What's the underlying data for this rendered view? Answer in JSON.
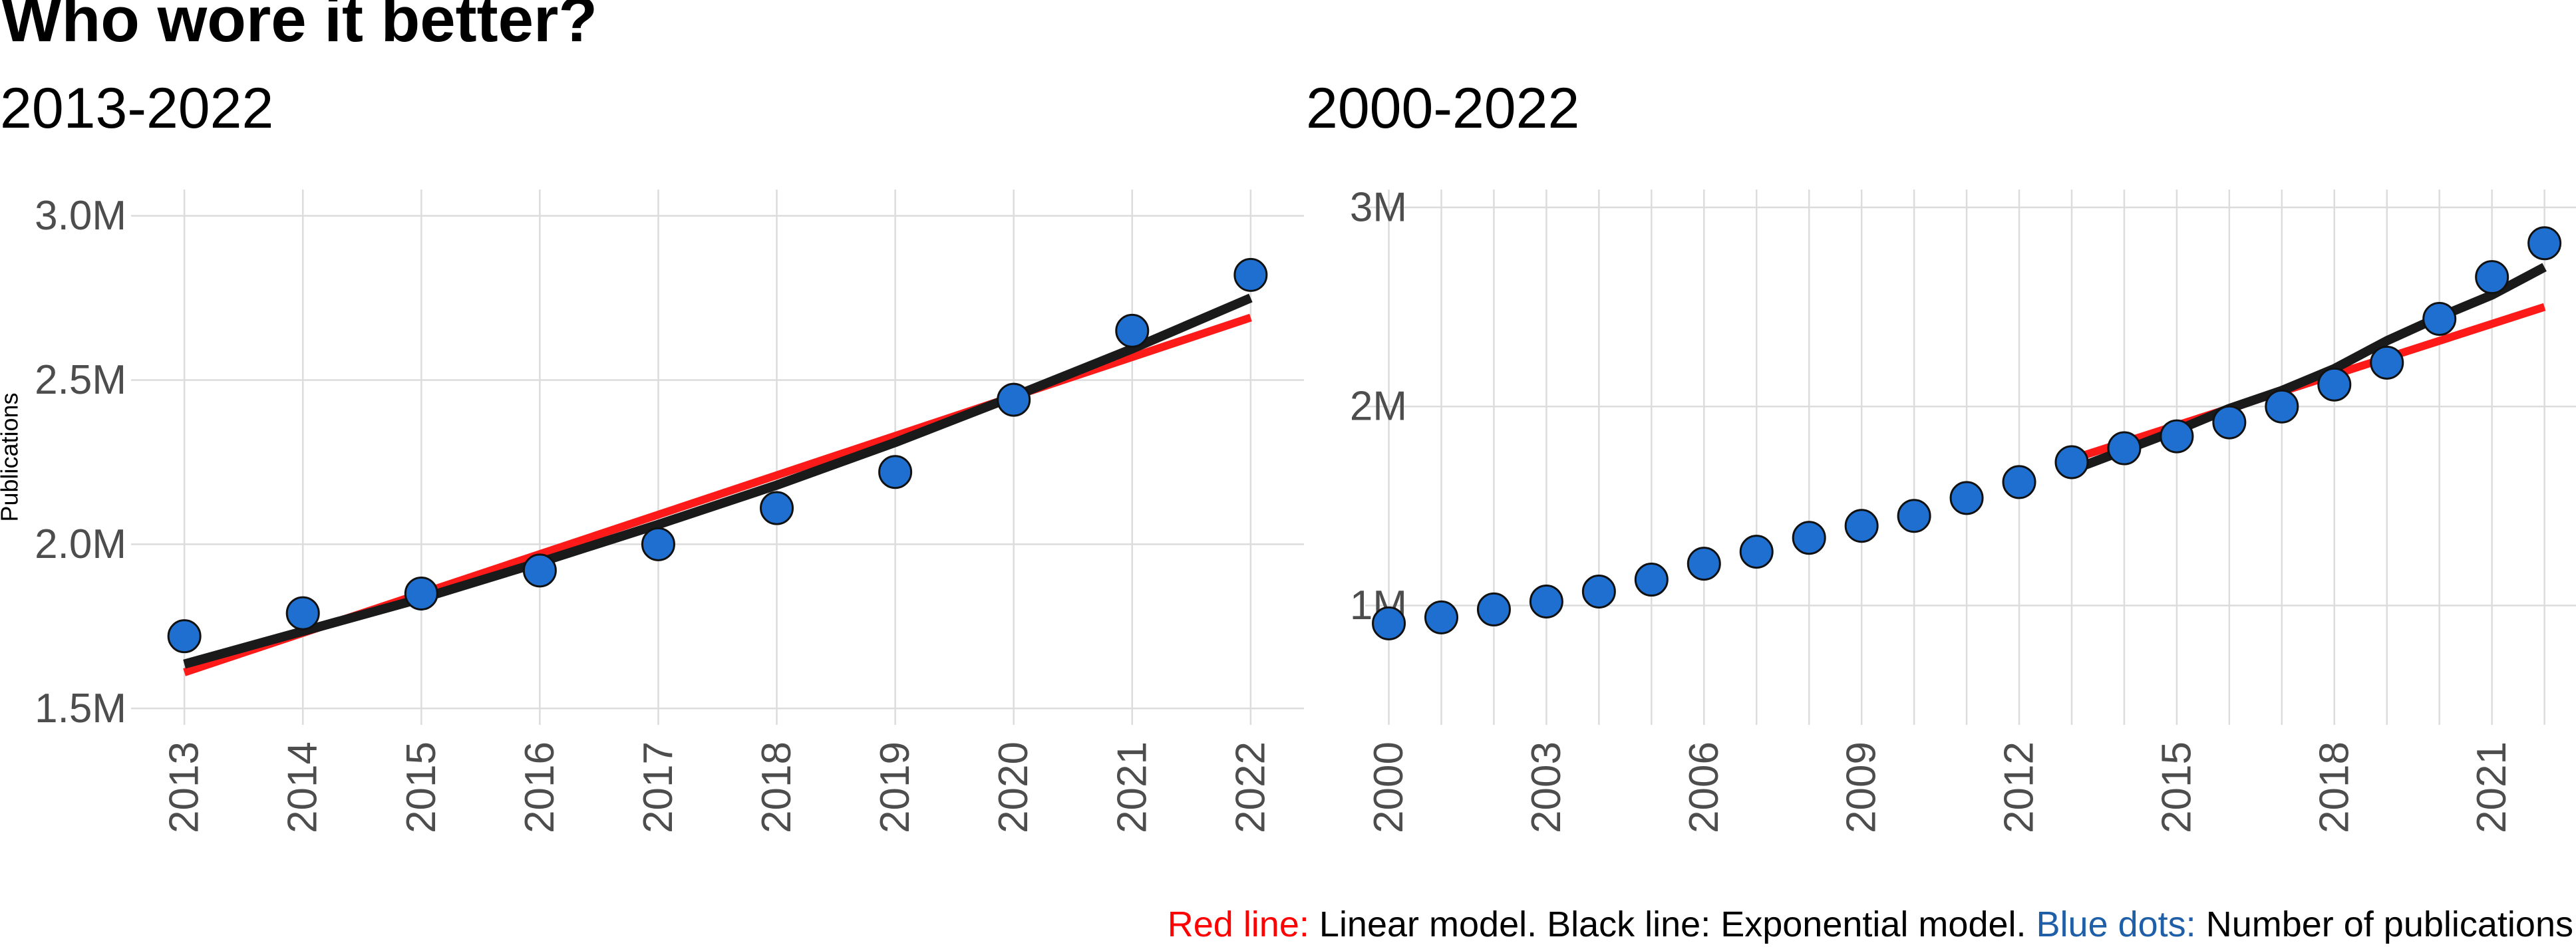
{
  "title": "Who wore it better?",
  "colors": {
    "linear_line": "#ff1a1a",
    "exponential_line": "#1a1a1a",
    "dots": "#1e6fd0",
    "caption_red": "#ff0000",
    "caption_blue": "#1f5fa8",
    "grid": "#dcdcdc"
  },
  "caption": {
    "red_label": "Red line:",
    "red_text": "Linear model. Black line: Exponential model.",
    "blue_label": "Blue dots:",
    "blue_text": "Number of publications"
  },
  "chart_data": [
    {
      "type": "scatter",
      "subtitle": "2013-2022",
      "ylabel": "Publications",
      "xlabel": "",
      "x": [
        2013,
        2014,
        2015,
        2016,
        2017,
        2018,
        2019,
        2020,
        2021,
        2022
      ],
      "y": [
        1.72,
        1.79,
        1.85,
        1.92,
        2.0,
        2.11,
        2.22,
        2.44,
        2.65,
        2.82
      ],
      "y_unit": "M",
      "xlim": [
        2012.55,
        2022.45
      ],
      "ylim": [
        1.45,
        3.08
      ],
      "x_ticks": [
        2013,
        2014,
        2015,
        2016,
        2017,
        2018,
        2019,
        2020,
        2021,
        2022
      ],
      "y_ticks": [
        1.5,
        2.0,
        2.5,
        3.0
      ],
      "y_tick_labels": [
        "1.5M",
        "2.0M",
        "2.5M",
        "3.0M"
      ],
      "grid": true,
      "lines": [
        {
          "model": "linear",
          "x": [
            2013,
            2022
          ],
          "y": [
            1.61,
            2.69
          ]
        },
        {
          "model": "exponential",
          "x": [
            2013,
            2014,
            2015,
            2016,
            2017,
            2018,
            2019,
            2020,
            2021,
            2022
          ],
          "y": [
            1.635,
            1.735,
            1.835,
            1.945,
            2.06,
            2.18,
            2.31,
            2.45,
            2.595,
            2.75
          ]
        }
      ]
    },
    {
      "type": "scatter",
      "subtitle": "2000-2022",
      "ylabel": "",
      "xlabel": "",
      "x": [
        2000,
        2001,
        2002,
        2003,
        2004,
        2005,
        2006,
        2007,
        2008,
        2009,
        2010,
        2011,
        2012,
        2013,
        2014,
        2015,
        2016,
        2017,
        2018,
        2019,
        2020,
        2021,
        2022
      ],
      "y": [
        0.91,
        0.94,
        0.98,
        1.02,
        1.07,
        1.13,
        1.21,
        1.27,
        1.34,
        1.4,
        1.45,
        1.54,
        1.62,
        1.72,
        1.79,
        1.85,
        1.92,
        2.0,
        2.11,
        2.22,
        2.44,
        2.65,
        2.82
      ],
      "y_unit": "M",
      "xlim": [
        1999.55,
        2022.6
      ],
      "ylim": [
        0.4,
        3.09
      ],
      "x_ticks": [
        2000,
        2003,
        2006,
        2009,
        2012,
        2015,
        2018,
        2021
      ],
      "y_ticks": [
        1,
        2,
        3
      ],
      "y_tick_labels": [
        "1M",
        "2M",
        "3M"
      ],
      "grid": true,
      "lines": [
        {
          "model": "linear",
          "x": [
            2013,
            2022
          ],
          "y": [
            1.735,
            2.5
          ]
        },
        {
          "model": "exponential",
          "x": [
            2013,
            2014,
            2015,
            2016,
            2017,
            2018,
            2019,
            2020,
            2021,
            2022
          ],
          "y": [
            1.68,
            1.78,
            1.88,
            1.99,
            2.08,
            2.19,
            2.33,
            2.45,
            2.56,
            2.7
          ]
        }
      ]
    }
  ]
}
